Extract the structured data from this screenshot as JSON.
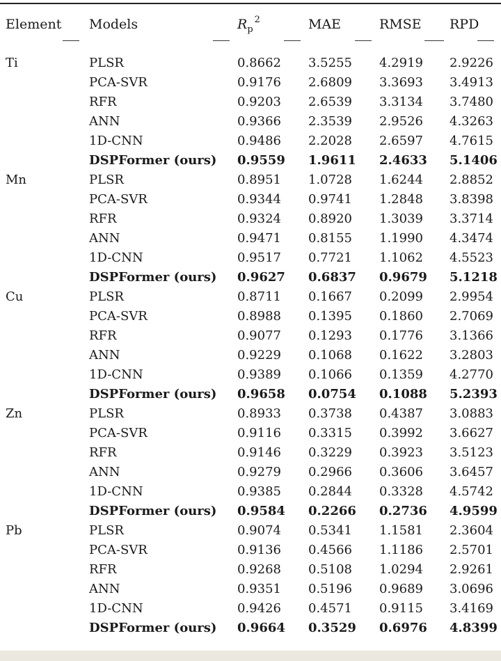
{
  "table": {
    "headers": {
      "element": "Element",
      "models": "Models",
      "r2_main": "R",
      "r2_sub": "p",
      "r2_sup": "2",
      "mae": "MAE",
      "rmse": "RMSE",
      "rpd": "RPD"
    },
    "groups": [
      {
        "element": "Ti",
        "rows": [
          {
            "model": "PLSR",
            "values": [
              "0.8662",
              "3.5255",
              "4.2919",
              "2.9226"
            ],
            "bold": false
          },
          {
            "model": "PCA-SVR",
            "values": [
              "0.9176",
              "2.6809",
              "3.3693",
              "3.4913"
            ],
            "bold": false
          },
          {
            "model": "RFR",
            "values": [
              "0.9203",
              "2.6539",
              "3.3134",
              "3.7480"
            ],
            "bold": false
          },
          {
            "model": "ANN",
            "values": [
              "0.9366",
              "2.3539",
              "2.9526",
              "4.3263"
            ],
            "bold": false
          },
          {
            "model": "1D-CNN",
            "values": [
              "0.9486",
              "2.2028",
              "2.6597",
              "4.7615"
            ],
            "bold": false
          },
          {
            "model": "DSPFormer (ours)",
            "values": [
              "0.9559",
              "1.9611",
              "2.4633",
              "5.1406"
            ],
            "bold": true
          }
        ]
      },
      {
        "element": "Mn",
        "rows": [
          {
            "model": "PLSR",
            "values": [
              "0.8951",
              "1.0728",
              "1.6244",
              "2.8852"
            ],
            "bold": false
          },
          {
            "model": "PCA-SVR",
            "values": [
              "0.9344",
              "0.9741",
              "1.2848",
              "3.8398"
            ],
            "bold": false
          },
          {
            "model": "RFR",
            "values": [
              "0.9324",
              "0.8920",
              "1.3039",
              "3.3714"
            ],
            "bold": false
          },
          {
            "model": "ANN",
            "values": [
              "0.9471",
              "0.8155",
              "1.1990",
              "4.3474"
            ],
            "bold": false
          },
          {
            "model": "1D-CNN",
            "values": [
              "0.9517",
              "0.7721",
              "1.1062",
              "4.5523"
            ],
            "bold": false
          },
          {
            "model": "DSPFormer (ours)",
            "values": [
              "0.9627",
              "0.6837",
              "0.9679",
              "5.1218"
            ],
            "bold": true
          }
        ]
      },
      {
        "element": "Cu",
        "rows": [
          {
            "model": "PLSR",
            "values": [
              "0.8711",
              "0.1667",
              "0.2099",
              "2.9954"
            ],
            "bold": false
          },
          {
            "model": "PCA-SVR",
            "values": [
              "0.8988",
              "0.1395",
              "0.1860",
              "2.7069"
            ],
            "bold": false
          },
          {
            "model": "RFR",
            "values": [
              "0.9077",
              "0.1293",
              "0.1776",
              "3.1366"
            ],
            "bold": false
          },
          {
            "model": "ANN",
            "values": [
              "0.9229",
              "0.1068",
              "0.1622",
              "3.2803"
            ],
            "bold": false
          },
          {
            "model": "1D-CNN",
            "values": [
              "0.9389",
              "0.1066",
              "0.1359",
              "4.2770"
            ],
            "bold": false
          },
          {
            "model": "DSPFormer (ours)",
            "values": [
              "0.9658",
              "0.0754",
              "0.1088",
              "5.2393"
            ],
            "bold": true
          }
        ]
      },
      {
        "element": "Zn",
        "rows": [
          {
            "model": "PLSR",
            "values": [
              "0.8933",
              "0.3738",
              "0.4387",
              "3.0883"
            ],
            "bold": false
          },
          {
            "model": "PCA-SVR",
            "values": [
              "0.9116",
              "0.3315",
              "0.3992",
              "3.6627"
            ],
            "bold": false
          },
          {
            "model": "RFR",
            "values": [
              "0.9146",
              "0.3229",
              "0.3923",
              "3.5123"
            ],
            "bold": false
          },
          {
            "model": "ANN",
            "values": [
              "0.9279",
              "0.2966",
              "0.3606",
              "3.6457"
            ],
            "bold": false
          },
          {
            "model": "1D-CNN",
            "values": [
              "0.9385",
              "0.2844",
              "0.3328",
              "4.5742"
            ],
            "bold": false
          },
          {
            "model": "DSPFormer (ours)",
            "values": [
              "0.9584",
              "0.2266",
              "0.2736",
              "4.9599"
            ],
            "bold": true
          }
        ]
      },
      {
        "element": "Pb",
        "rows": [
          {
            "model": "PLSR",
            "values": [
              "0.9074",
              "0.5341",
              "1.1581",
              "2.3604"
            ],
            "bold": false
          },
          {
            "model": "PCA-SVR",
            "values": [
              "0.9136",
              "0.4566",
              "1.1186",
              "2.5701"
            ],
            "bold": false
          },
          {
            "model": "RFR",
            "values": [
              "0.9268",
              "0.5108",
              "1.0294",
              "2.9261"
            ],
            "bold": false
          },
          {
            "model": "ANN",
            "values": [
              "0.9351",
              "0.5196",
              "0.9689",
              "3.0696"
            ],
            "bold": false
          },
          {
            "model": "1D-CNN",
            "values": [
              "0.9426",
              "0.4571",
              "0.9115",
              "3.4169"
            ],
            "bold": false
          },
          {
            "model": "DSPFormer (ours)",
            "values": [
              "0.9664",
              "0.3529",
              "0.6976",
              "4.8399"
            ],
            "bold": true
          }
        ]
      }
    ]
  }
}
